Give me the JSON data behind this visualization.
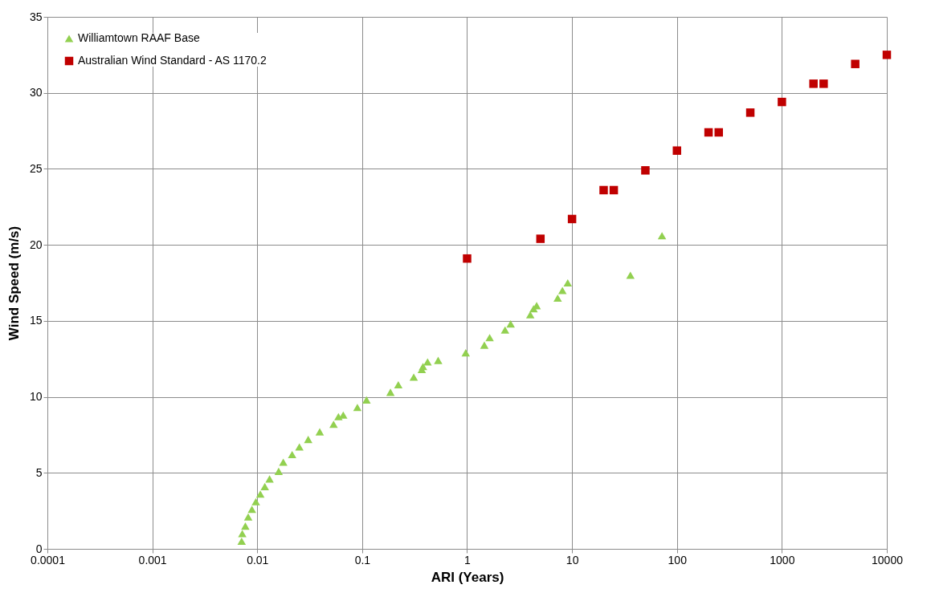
{
  "chart_data": {
    "type": "scatter",
    "xlabel": "ARI (Years)",
    "ylabel": "Wind Speed (m/s)",
    "log": "x",
    "xlim": [
      0.0001,
      10000
    ],
    "xticks": [
      0.0001,
      0.001,
      0.01,
      0.1,
      1,
      10,
      100,
      1000,
      10000
    ],
    "ylim": [
      0,
      35
    ],
    "yticks": [
      0,
      5,
      10,
      15,
      20,
      25,
      30,
      35
    ],
    "grid": true,
    "legend": "top left",
    "series": [
      {
        "name": "Williamtown RAAF Base",
        "color": "#92d050",
        "marker": "triangle",
        "x": [
          0.0071,
          0.0072,
          0.0077,
          0.0082,
          0.0089,
          0.0097,
          0.0107,
          0.0118,
          0.0131,
          0.016,
          0.0177,
          0.0215,
          0.0252,
          0.0306,
          0.0394,
          0.0534,
          0.0594,
          0.066,
          0.09,
          0.11,
          0.186,
          0.221,
          0.31,
          0.37,
          0.38,
          0.42,
          0.53,
          0.97,
          1.46,
          1.64,
          2.3,
          2.6,
          4.0,
          4.3,
          4.6,
          7.3,
          8.1,
          9.1,
          36,
          72
        ],
        "values": [
          0.5,
          1.0,
          1.5,
          2.1,
          2.6,
          3.1,
          3.6,
          4.1,
          4.6,
          5.1,
          5.7,
          6.2,
          6.7,
          7.2,
          7.7,
          8.2,
          8.7,
          8.8,
          9.3,
          9.8,
          10.3,
          10.8,
          11.3,
          11.8,
          12.0,
          12.3,
          12.4,
          12.9,
          13.4,
          13.9,
          14.4,
          14.8,
          15.4,
          15.8,
          16.0,
          16.5,
          17.0,
          17.5,
          18.0,
          20.6
        ]
      },
      {
        "name": "Australian Wind Standard - AS 1170.2",
        "color": "#c00000",
        "marker": "square",
        "x": [
          1,
          5,
          10,
          20,
          25,
          50,
          100,
          200,
          250,
          500,
          1000,
          2000,
          2500,
          5000,
          10000
        ],
        "values": [
          19.1,
          20.4,
          21.7,
          23.6,
          23.6,
          24.9,
          26.2,
          27.4,
          27.4,
          28.7,
          29.4,
          30.6,
          30.6,
          31.9,
          32.5
        ]
      }
    ]
  }
}
